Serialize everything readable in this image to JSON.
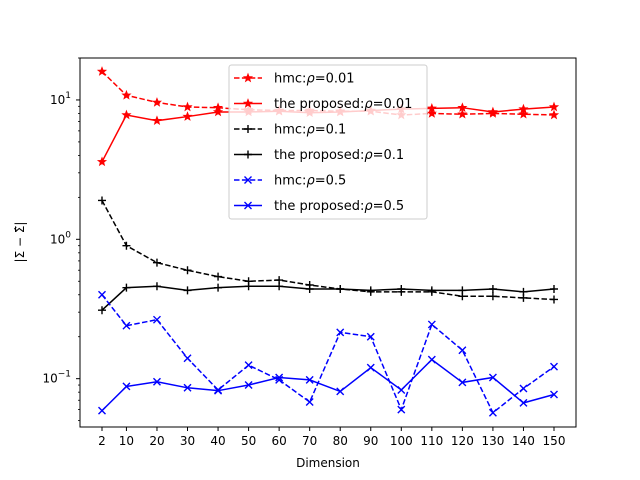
{
  "chart_data": {
    "type": "line",
    "title": "",
    "xlabel": "Dimension",
    "ylabel": "|Σ − Σ̂|",
    "yscale": "log",
    "ylim": [
      0.045,
      20
    ],
    "x": [
      2,
      10,
      20,
      30,
      40,
      50,
      60,
      70,
      80,
      90,
      100,
      110,
      120,
      130,
      140,
      150
    ],
    "x_tick_labels": [
      "2",
      "10",
      "20",
      "30",
      "40",
      "50",
      "60",
      "70",
      "80",
      "90",
      "100",
      "110",
      "120",
      "130",
      "140",
      "150"
    ],
    "y_ticks": [
      {
        "value": 0.1,
        "base": "10",
        "exp": "−1"
      },
      {
        "value": 1,
        "base": "10",
        "exp": "0"
      },
      {
        "value": 10,
        "base": "10",
        "exp": "1"
      }
    ],
    "legend_position": "upper-center",
    "series": [
      {
        "name": "hmc:ρ=0.01",
        "label_prefix": "hmc:",
        "rho": "ρ=0.01",
        "color": "#ff0000",
        "dashed": true,
        "marker": "star",
        "values": [
          16.0,
          10.8,
          9.6,
          8.9,
          8.8,
          8.5,
          8.4,
          8.4,
          8.3,
          8.3,
          7.8,
          8.0,
          7.9,
          8.0,
          7.9,
          7.8
        ]
      },
      {
        "name": "the proposed:ρ=0.01",
        "label_prefix": "the proposed:",
        "rho": "ρ=0.01",
        "color": "#ff0000",
        "dashed": false,
        "marker": "star",
        "values": [
          3.6,
          7.8,
          7.1,
          7.6,
          8.2,
          8.2,
          8.3,
          8.1,
          8.2,
          8.4,
          8.6,
          8.7,
          8.8,
          8.2,
          8.6,
          8.9
        ]
      },
      {
        "name": "hmc:ρ=0.1",
        "label_prefix": "hmc:",
        "rho": "ρ=0.1",
        "color": "#000000",
        "dashed": true,
        "marker": "plus",
        "values": [
          1.9,
          0.9,
          0.68,
          0.6,
          0.54,
          0.5,
          0.51,
          0.47,
          0.44,
          0.42,
          0.42,
          0.42,
          0.39,
          0.39,
          0.38,
          0.37
        ]
      },
      {
        "name": "the proposed:ρ=0.1",
        "label_prefix": "the proposed:",
        "rho": "ρ=0.1",
        "color": "#000000",
        "dashed": false,
        "marker": "plus",
        "values": [
          0.31,
          0.45,
          0.46,
          0.43,
          0.45,
          0.46,
          0.46,
          0.44,
          0.44,
          0.43,
          0.44,
          0.43,
          0.43,
          0.44,
          0.42,
          0.44
        ]
      },
      {
        "name": "hmc:ρ=0.5",
        "label_prefix": "hmc:",
        "rho": "ρ=0.5",
        "color": "#0000ff",
        "dashed": true,
        "marker": "x",
        "values": [
          0.4,
          0.24,
          0.265,
          0.14,
          0.083,
          0.125,
          0.098,
          0.068,
          0.215,
          0.2,
          0.06,
          0.245,
          0.16,
          0.057,
          0.085,
          0.122
        ]
      },
      {
        "name": "the proposed:ρ=0.5",
        "label_prefix": "the proposed:",
        "rho": "ρ=0.5",
        "color": "#0000ff",
        "dashed": false,
        "marker": "x",
        "values": [
          0.059,
          0.088,
          0.095,
          0.086,
          0.082,
          0.09,
          0.102,
          0.098,
          0.081,
          0.12,
          0.083,
          0.137,
          0.094,
          0.102,
          0.067,
          0.077
        ]
      }
    ]
  }
}
